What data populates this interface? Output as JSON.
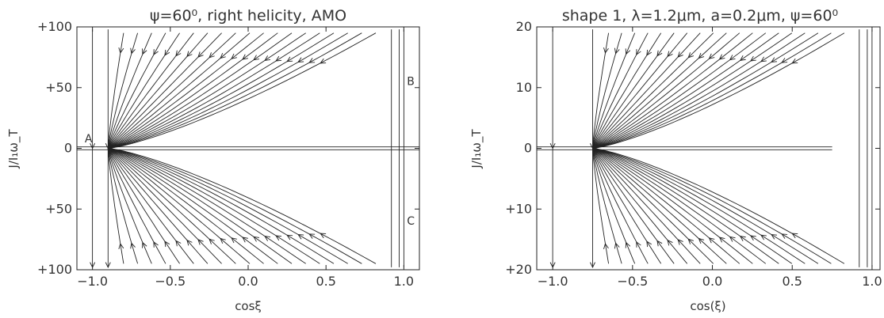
{
  "chart_data": [
    {
      "type": "line",
      "title": "ψ=60⁰, right helicity, AMO",
      "xlabel": "cosξ",
      "ylabel": "J/I₁ω_T",
      "xlim": [
        -1.1,
        1.1
      ],
      "ylim": [
        -100,
        100
      ],
      "x_ticks": [
        "−1.0",
        "−0.5",
        "0.0",
        "0.5",
        "1.0"
      ],
      "y_ticks": [
        "+100",
        "+50",
        "0",
        "+50",
        "+100"
      ],
      "attractor_x": -0.9,
      "annotations": [
        {
          "label": "A",
          "x": -1.05,
          "y": 5
        },
        {
          "label": "B",
          "x": 1.02,
          "y": 52
        },
        {
          "label": "C",
          "x": 1.02,
          "y": -63
        }
      ]
    },
    {
      "type": "line",
      "title": "shape 1, λ=1.2μm, a=0.2μm, ψ=60⁰",
      "xlabel": "cos(ξ)",
      "ylabel": "J/I₁ω_T",
      "xlim": [
        -1.1,
        1.05
      ],
      "ylim": [
        -21,
        21
      ],
      "x_ticks": [
        "−1.0",
        "−0.5",
        "0.0",
        "0.5",
        "1.0"
      ],
      "y_ticks": [
        "20",
        "10",
        "0",
        "+10",
        "+20"
      ],
      "attractor_x": -0.75,
      "annotations": []
    }
  ]
}
